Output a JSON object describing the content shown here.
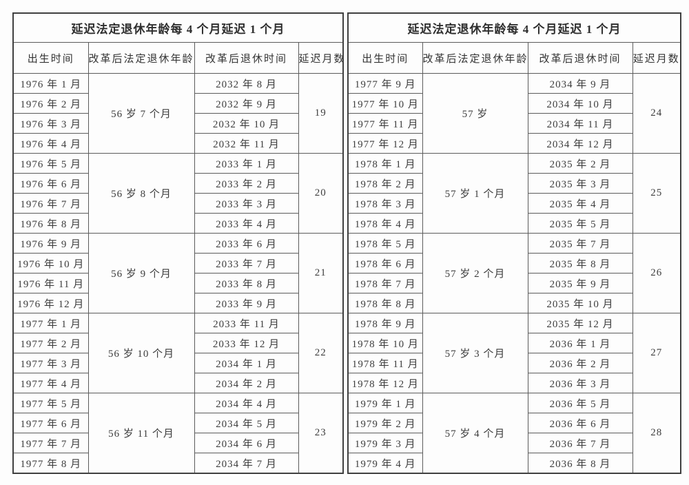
{
  "document": {
    "background": "#fdfdfd",
    "text_color": "#3a3a3a",
    "border_color": "#5b5b5b"
  },
  "tables": [
    {
      "title": "延迟法定退休年龄每 4 个月延迟 1 个月",
      "headers": [
        "出生时间",
        "改革后法定退休年龄",
        "改革后退休时间",
        "延迟月数"
      ],
      "groups": [
        {
          "birth_months": [
            "1976 年 1 月",
            "1976 年 2 月",
            "1976 年 3 月",
            "1976 年 4 月"
          ],
          "retirement_age": "56 岁 7 个月",
          "retirement_months": [
            "2032 年 8 月",
            "2032 年 9 月",
            "2032 年 10 月",
            "2032 年 11 月"
          ],
          "delay_months": "19"
        },
        {
          "birth_months": [
            "1976 年 5 月",
            "1976 年 6 月",
            "1976 年 7 月",
            "1976 年 8 月"
          ],
          "retirement_age": "56 岁 8 个月",
          "retirement_months": [
            "2033 年 1 月",
            "2033 年 2 月",
            "2033 年 3 月",
            "2033 年 4 月"
          ],
          "delay_months": "20"
        },
        {
          "birth_months": [
            "1976 年 9 月",
            "1976 年 10 月",
            "1976 年 11 月",
            "1976 年 12 月"
          ],
          "retirement_age": "56 岁 9 个月",
          "retirement_months": [
            "2033 年 6 月",
            "2033 年 7 月",
            "2033 年 8 月",
            "2033 年 9 月"
          ],
          "delay_months": "21"
        },
        {
          "birth_months": [
            "1977 年 1 月",
            "1977 年 2 月",
            "1977 年 3 月",
            "1977 年 4 月"
          ],
          "retirement_age": "56 岁 10 个月",
          "retirement_months": [
            "2033 年 11 月",
            "2033 年 12 月",
            "2034 年 1 月",
            "2034 年 2 月"
          ],
          "delay_months": "22"
        },
        {
          "birth_months": [
            "1977 年 5 月",
            "1977 年 6 月",
            "1977 年 7 月",
            "1977 年 8 月"
          ],
          "retirement_age": "56 岁 11 个月",
          "retirement_months": [
            "2034 年 4 月",
            "2034 年 5 月",
            "2034 年 6 月",
            "2034 年 7 月"
          ],
          "delay_months": "23"
        }
      ]
    },
    {
      "title": "延迟法定退休年龄每 4 个月延迟 1 个月",
      "headers": [
        "出生时间",
        "改革后法定退休年龄",
        "改革后退休时间",
        "延迟月数"
      ],
      "groups": [
        {
          "birth_months": [
            "1977 年 9 月",
            "1977 年 10 月",
            "1977 年 11 月",
            "1977 年 12 月"
          ],
          "retirement_age": "57 岁",
          "retirement_months": [
            "2034 年 9 月",
            "2034 年 10 月",
            "2034 年 11 月",
            "2034 年 12 月"
          ],
          "delay_months": "24"
        },
        {
          "birth_months": [
            "1978 年 1 月",
            "1978 年 2 月",
            "1978 年 3 月",
            "1978 年 4 月"
          ],
          "retirement_age": "57 岁 1 个月",
          "retirement_months": [
            "2035 年 2 月",
            "2035 年 3 月",
            "2035 年 4 月",
            "2035 年 5 月"
          ],
          "delay_months": "25"
        },
        {
          "birth_months": [
            "1978 年 5 月",
            "1978 年 6 月",
            "1978 年 7 月",
            "1978 年 8 月"
          ],
          "retirement_age": "57 岁 2 个月",
          "retirement_months": [
            "2035 年 7 月",
            "2035 年 8 月",
            "2035 年 9 月",
            "2035 年 10 月"
          ],
          "delay_months": "26"
        },
        {
          "birth_months": [
            "1978 年 9 月",
            "1978 年 10 月",
            "1978 年 11 月",
            "1978 年 12 月"
          ],
          "retirement_age": "57 岁 3 个月",
          "retirement_months": [
            "2035 年 12 月",
            "2036 年 1 月",
            "2036 年 2 月",
            "2036 年 3 月"
          ],
          "delay_months": "27"
        },
        {
          "birth_months": [
            "1979 年 1 月",
            "1979 年 2 月",
            "1979 年 3 月",
            "1979 年 4 月"
          ],
          "retirement_age": "57 岁 4 个月",
          "retirement_months": [
            "2036 年 5 月",
            "2036 年 6 月",
            "2036 年 7 月",
            "2036 年 8 月"
          ],
          "delay_months": "28"
        }
      ]
    }
  ]
}
